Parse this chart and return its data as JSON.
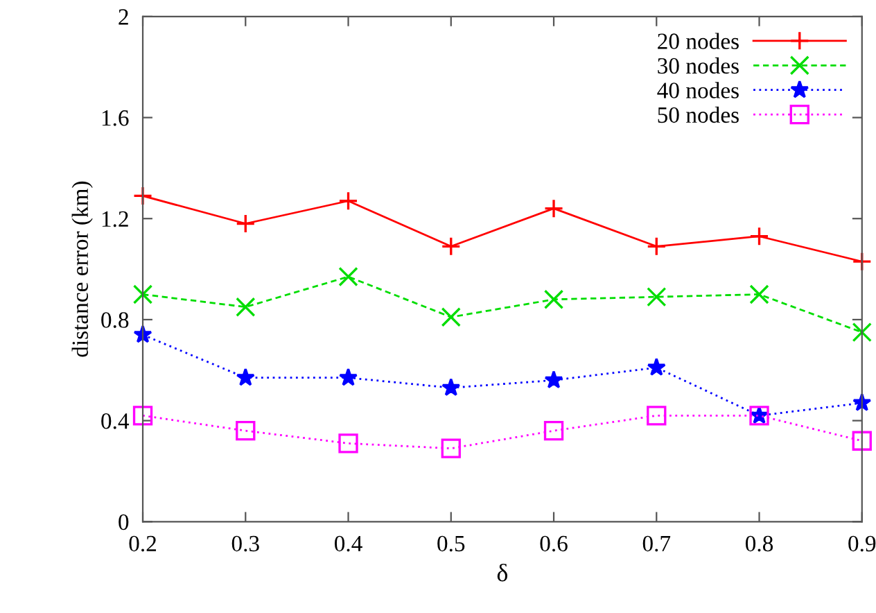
{
  "chart_data": {
    "type": "line",
    "xlabel": "δ",
    "ylabel": "distance error (km)",
    "x": [
      0.2,
      0.3,
      0.4,
      0.5,
      0.6,
      0.7,
      0.8,
      0.9
    ],
    "series": [
      {
        "name": "20 nodes",
        "color": "#ff0000",
        "marker": "cross",
        "line_style": "solid",
        "values": [
          1.29,
          1.18,
          1.27,
          1.09,
          1.24,
          1.09,
          1.13,
          1.03
        ]
      },
      {
        "name": "30 nodes",
        "color": "#00dd00",
        "marker": "x",
        "line_style": "dashed",
        "values": [
          0.9,
          0.85,
          0.97,
          0.81,
          0.88,
          0.89,
          0.9,
          0.75
        ]
      },
      {
        "name": "40 nodes",
        "color": "#0000ff",
        "marker": "star",
        "line_style": "dotted",
        "values": [
          0.74,
          0.57,
          0.57,
          0.53,
          0.56,
          0.61,
          0.42,
          0.47
        ]
      },
      {
        "name": "50 nodes",
        "color": "#ff00ff",
        "marker": "square",
        "line_style": "dotted",
        "values": [
          0.42,
          0.36,
          0.31,
          0.29,
          0.36,
          0.42,
          0.42,
          0.32
        ]
      }
    ],
    "xlim": [
      0.2,
      0.9
    ],
    "xticks": [
      0.2,
      0.3,
      0.4,
      0.5,
      0.6,
      0.7,
      0.8,
      0.9
    ],
    "ylim": [
      0,
      2
    ],
    "yticks": [
      0,
      0.4,
      0.8,
      1.2,
      1.6,
      2
    ],
    "grid": false,
    "legend": "top right"
  }
}
